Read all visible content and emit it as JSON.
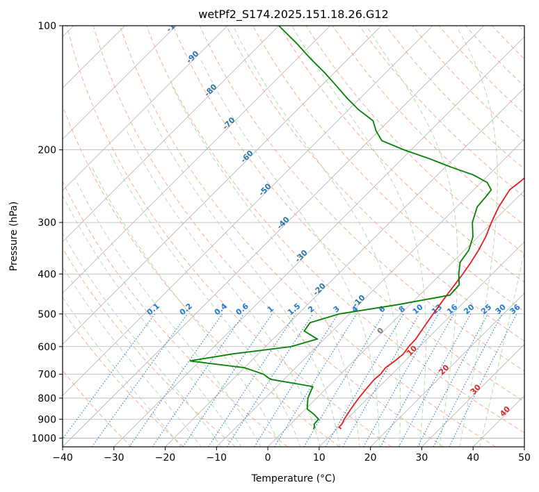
{
  "chart_data": {
    "type": "line",
    "title": "wetPf2_S174.2025.151.18.26.G12",
    "xlabel": "Temperature (°C)",
    "ylabel": "Pressure (hPa)",
    "xlim": [
      -40,
      50
    ],
    "ylim": [
      1050,
      100
    ],
    "yscale": "log",
    "grid": true,
    "x_ticks": [
      "−40",
      "−30",
      "−20",
      "−10",
      "0",
      "10",
      "20",
      "30",
      "40",
      "50"
    ],
    "x_tick_values": [
      -40,
      -30,
      -20,
      -10,
      0,
      10,
      20,
      30,
      40,
      50
    ],
    "y_ticks": [
      "100",
      "200",
      "300",
      "400",
      "500",
      "600",
      "700",
      "800",
      "900",
      "1000"
    ],
    "y_tick_values": [
      100,
      200,
      300,
      400,
      500,
      600,
      700,
      800,
      900,
      1000
    ],
    "series": [
      {
        "color": "#e41a1c",
        "kind": "temperature",
        "points": [
          [
            10.8,
            950
          ],
          [
            10.0,
            940
          ],
          [
            10.0,
            925
          ],
          [
            9.5,
            900
          ],
          [
            8.8,
            850
          ],
          [
            8.2,
            800
          ],
          [
            7.8,
            750
          ],
          [
            7.6,
            720
          ],
          [
            7.8,
            700
          ],
          [
            7.5,
            675
          ],
          [
            8.0,
            650
          ],
          [
            8.3,
            625
          ],
          [
            7.9,
            600
          ],
          [
            7.8,
            575
          ],
          [
            7.3,
            550
          ],
          [
            6.8,
            525
          ],
          [
            6.3,
            500
          ],
          [
            5.8,
            475
          ],
          [
            5.3,
            450
          ],
          [
            4.8,
            425
          ],
          [
            4.3,
            400
          ],
          [
            3.6,
            375
          ],
          [
            2.7,
            350
          ],
          [
            1.5,
            325
          ],
          [
            -0.2,
            300
          ],
          [
            -1.8,
            275
          ],
          [
            -3.0,
            250
          ],
          [
            -2.6,
            240
          ],
          [
            -2.3,
            230
          ],
          [
            -0.5,
            220
          ],
          [
            2.3,
            210
          ],
          [
            5.6,
            200
          ],
          [
            9.7,
            190
          ],
          [
            12.4,
            180
          ],
          [
            16.0,
            170
          ],
          [
            18.2,
            160
          ],
          [
            18.4,
            150
          ],
          [
            19.3,
            140
          ],
          [
            21.3,
            130
          ],
          [
            22.1,
            120
          ],
          [
            22.5,
            110
          ],
          [
            24.0,
            100
          ]
        ]
      },
      {
        "color": "#008000",
        "kind": "dewpoint",
        "points": [
          [
            5.4,
            950
          ],
          [
            5.2,
            940
          ],
          [
            4.6,
            925
          ],
          [
            4.5,
            900
          ],
          [
            2.6,
            875
          ],
          [
            0.3,
            850
          ],
          [
            -1.7,
            800
          ],
          [
            -3.0,
            750
          ],
          [
            -12.7,
            720
          ],
          [
            -15.0,
            700
          ],
          [
            -20.0,
            675
          ],
          [
            -32.0,
            650
          ],
          [
            -25.0,
            625
          ],
          [
            -15.0,
            600
          ],
          [
            -11.4,
            575
          ],
          [
            -15.5,
            550
          ],
          [
            -16.0,
            525
          ],
          [
            -12.0,
            500
          ],
          [
            -2.5,
            475
          ],
          [
            5.9,
            450
          ],
          [
            5.7,
            425
          ],
          [
            3.5,
            400
          ],
          [
            1.5,
            375
          ],
          [
            0.8,
            350
          ],
          [
            -1.0,
            325
          ],
          [
            -3.9,
            300
          ],
          [
            -6.0,
            275
          ],
          [
            -6.3,
            260
          ],
          [
            -6.6,
            250
          ],
          [
            -8.8,
            240
          ],
          [
            -13.0,
            230
          ],
          [
            -19.0,
            220
          ],
          [
            -24.8,
            210
          ],
          [
            -31.4,
            200
          ],
          [
            -37.5,
            190
          ],
          [
            -40.5,
            180
          ],
          [
            -43.1,
            170
          ],
          [
            -48.0,
            160
          ],
          [
            -52.5,
            150
          ],
          [
            -57.0,
            140
          ],
          [
            -61.9,
            130
          ],
          [
            -67.5,
            120
          ],
          [
            -73.3,
            110
          ],
          [
            -80.0,
            100
          ]
        ]
      }
    ],
    "dry_adiabat_labels": [
      "-100",
      "-90",
      "-80",
      "-70",
      "-60",
      "-50",
      "-40",
      "-30",
      "-20",
      "-10",
      "0",
      "10",
      "20",
      "30",
      "40"
    ],
    "mixing_ratio_labels": [
      "0.1",
      "0.2",
      "0.4",
      "0.6",
      "1",
      "1.5",
      "2",
      "3",
      "4",
      "6",
      "8",
      "10",
      "13",
      "16",
      "20",
      "25",
      "30",
      "36"
    ],
    "colors": {
      "skew_isotherm": "#b0b0b0",
      "isobar": "#b0b0b0",
      "dry_adiabat": "#f4a582",
      "moist_adiabat": "#a6d8a6",
      "mixing_ratio": "#1f78d1",
      "label_blue": "#2874a6",
      "label_red": "#d62728",
      "label_grey": "#808080"
    }
  }
}
